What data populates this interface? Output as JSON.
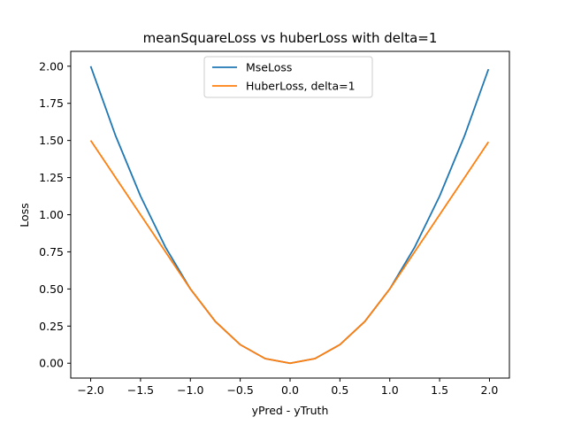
{
  "chart_data": {
    "type": "line",
    "title": "meanSquareLoss vs huberLoss with delta=1",
    "xlabel": "yPred - yTruth",
    "ylabel": "Loss",
    "xlim": [
      -2.2,
      2.2
    ],
    "ylim": [
      -0.1,
      2.1
    ],
    "xticks": [
      -2.0,
      -1.5,
      -1.0,
      -0.5,
      0.0,
      0.5,
      1.0,
      1.5,
      2.0
    ],
    "xtick_labels": [
      "−2.0",
      "−1.5",
      "−1.0",
      "−0.5",
      "0.0",
      "0.5",
      "1.0",
      "1.5",
      "2.0"
    ],
    "yticks": [
      0.0,
      0.25,
      0.5,
      0.75,
      1.0,
      1.25,
      1.5,
      1.75,
      2.0
    ],
    "ytick_labels": [
      "0.00",
      "0.25",
      "0.50",
      "0.75",
      "1.00",
      "1.25",
      "1.50",
      "1.75",
      "2.00"
    ],
    "grid": false,
    "legend_position": "top-center",
    "series": [
      {
        "name": "MseLoss",
        "color": "#1f77b4",
        "x": [
          -2.0,
          -1.75,
          -1.5,
          -1.25,
          -1.0,
          -0.75,
          -0.5,
          -0.25,
          0.0,
          0.25,
          0.5,
          0.75,
          1.0,
          1.25,
          1.5,
          1.75,
          1.99
        ],
        "y": [
          2.0,
          1.5313,
          1.125,
          0.7813,
          0.5,
          0.2813,
          0.125,
          0.0313,
          0.0,
          0.0313,
          0.125,
          0.2813,
          0.5,
          0.7813,
          1.125,
          1.5313,
          1.98
        ]
      },
      {
        "name": "HuberLoss, delta=1",
        "color": "#ff7f0e",
        "x": [
          -2.0,
          -1.75,
          -1.5,
          -1.25,
          -1.0,
          -0.75,
          -0.5,
          -0.25,
          0.0,
          0.25,
          0.5,
          0.75,
          1.0,
          1.25,
          1.5,
          1.75,
          1.99
        ],
        "y": [
          1.5,
          1.25,
          1.0,
          0.75,
          0.5,
          0.2813,
          0.125,
          0.0313,
          0.0,
          0.0313,
          0.125,
          0.2813,
          0.5,
          0.75,
          1.0,
          1.25,
          1.49
        ]
      }
    ]
  }
}
